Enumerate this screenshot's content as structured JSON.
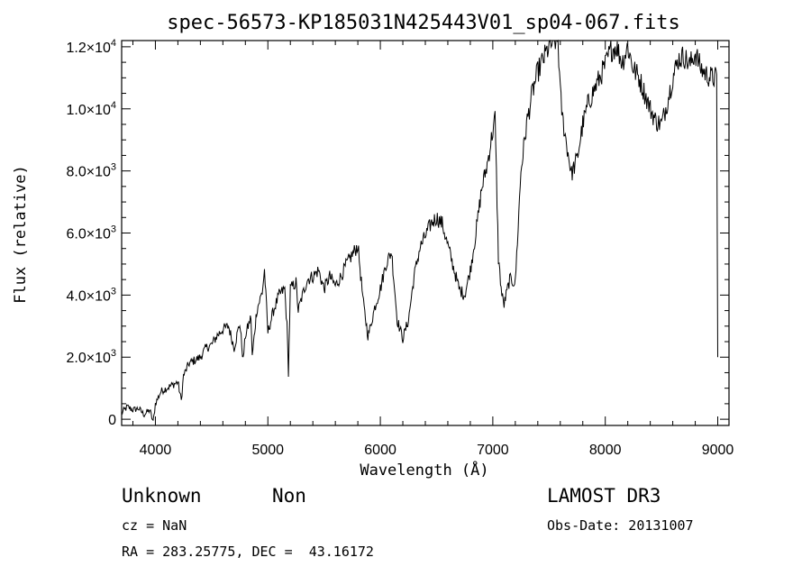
{
  "chart_data": {
    "type": "line",
    "title": "spec-56573-KP185031N425443V01_sp04-067.fits",
    "xlabel": "Wavelength (Å)",
    "ylabel": "Flux (relative)",
    "xlim": [
      3700,
      9100
    ],
    "ylim": [
      -200,
      12200
    ],
    "x_ticks": [
      {
        "value": 4000,
        "label": "4000"
      },
      {
        "value": 5000,
        "label": "5000"
      },
      {
        "value": 6000,
        "label": "6000"
      },
      {
        "value": 7000,
        "label": "7000"
      },
      {
        "value": 8000,
        "label": "8000"
      },
      {
        "value": 9000,
        "label": "9000"
      }
    ],
    "y_ticks": [
      {
        "value": 0,
        "mant": "0",
        "exp": ""
      },
      {
        "value": 2000,
        "mant": "2.0×10",
        "exp": "3"
      },
      {
        "value": 4000,
        "mant": "4.0×10",
        "exp": "3"
      },
      {
        "value": 6000,
        "mant": "6.0×10",
        "exp": "3"
      },
      {
        "value": 8000,
        "mant": "8.0×10",
        "exp": "3"
      },
      {
        "value": 10000,
        "mant": "1.0×10",
        "exp": "4"
      },
      {
        "value": 12000,
        "mant": "1.2×10",
        "exp": "4"
      }
    ],
    "grid": false,
    "series": [
      {
        "x": [
          3700,
          3750,
          3800,
          3850,
          3900,
          3950,
          3980,
          4000,
          4050,
          4100,
          4150,
          4200,
          4230,
          4250,
          4300,
          4350,
          4400,
          4450,
          4500,
          4550,
          4600,
          4650,
          4700,
          4750,
          4780,
          4800,
          4850,
          4861,
          4900,
          4950,
          4970,
          5000,
          5050,
          5100,
          5150,
          5170,
          5183,
          5200,
          5250,
          5270,
          5300,
          5350,
          5400,
          5450,
          5500,
          5550,
          5600,
          5650,
          5700,
          5750,
          5800,
          5850,
          5890,
          5900,
          5950,
          6000,
          6050,
          6100,
          6150,
          6200,
          6250,
          6300,
          6350,
          6400,
          6450,
          6500,
          6550,
          6600,
          6650,
          6700,
          6750,
          6800,
          6850,
          6900,
          6950,
          7000,
          7020,
          7050,
          7080,
          7100,
          7150,
          7200,
          7250,
          7300,
          7350,
          7400,
          7450,
          7500,
          7550,
          7580,
          7600,
          7620,
          7650,
          7700,
          7750,
          7800,
          7850,
          7900,
          7950,
          8000,
          8050,
          8100,
          8150,
          8200,
          8250,
          8300,
          8350,
          8400,
          8450,
          8500,
          8550,
          8600,
          8650,
          8700,
          8750,
          8800,
          8850,
          8900,
          8950,
          8990,
          9000
        ],
        "y": [
          200,
          400,
          300,
          350,
          150,
          300,
          -100,
          500,
          900,
          1000,
          1100,
          1200,
          600,
          1400,
          1800,
          1900,
          2000,
          2300,
          2400,
          2700,
          2900,
          3000,
          2300,
          3100,
          1900,
          2700,
          3300,
          2000,
          3500,
          4100,
          4800,
          2800,
          3500,
          4000,
          4200,
          3000,
          1500,
          4200,
          4400,
          3500,
          3900,
          4500,
          4600,
          4800,
          4200,
          4600,
          4300,
          4600,
          5000,
          5300,
          5600,
          3700,
          2700,
          2800,
          3600,
          4200,
          5000,
          5400,
          3200,
          2600,
          3200,
          4600,
          5500,
          5900,
          6300,
          6500,
          6300,
          5600,
          4900,
          4200,
          4000,
          4800,
          6000,
          7400,
          8200,
          9300,
          9700,
          5200,
          4000,
          3700,
          4500,
          4400,
          8000,
          9500,
          10500,
          11200,
          11600,
          12000,
          12200,
          12200,
          10500,
          9700,
          9000,
          7900,
          8400,
          9500,
          10200,
          10600,
          11000,
          11400,
          11900,
          12000,
          11500,
          12000,
          11300,
          11000,
          10500,
          10000,
          9600,
          9500,
          10200,
          11000,
          11600,
          11700,
          11400,
          11800,
          11300,
          11100,
          11000,
          11000,
          2000
        ]
      }
    ]
  },
  "info": {
    "object_class": "Unknown",
    "object_subclass": "Non",
    "cz": "cz = NaN",
    "radec": "RA = 283.25775, DEC =  43.16172",
    "survey": "LAMOST DR3",
    "obs_date": "Obs-Date: 20131007"
  }
}
